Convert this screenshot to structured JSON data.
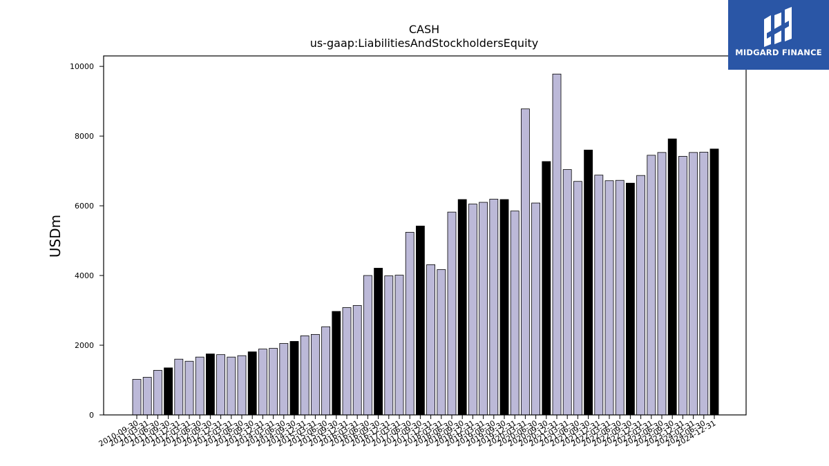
{
  "logo": {
    "text": "MIDGARD FINANCE",
    "background": "#2a56a6"
  },
  "chart_data": {
    "type": "bar",
    "title": "CASH",
    "subtitle": "us-gaap:LiabilitiesAndStockholdersEquity",
    "xlabel": "",
    "ylabel": "USDm",
    "ylim": [
      0,
      10300
    ],
    "yticks": [
      0,
      2000,
      4000,
      6000,
      8000,
      10000
    ],
    "grid": false,
    "colors": {
      "quarter": "#bcb9d8",
      "year_end": "#000000",
      "edge": "#000000"
    },
    "categories": [
      "2010-09-30",
      "2011-03-31",
      "2011-06-30",
      "2011-09-30",
      "2011-12-31",
      "2012-03-31",
      "2012-06-30",
      "2012-09-30",
      "2012-12-31",
      "2013-03-31",
      "2013-06-30",
      "2013-09-30",
      "2013-12-31",
      "2014-03-31",
      "2014-06-30",
      "2014-09-30",
      "2014-12-31",
      "2015-03-31",
      "2015-06-30",
      "2015-09-30",
      "2015-12-31",
      "2016-03-31",
      "2016-06-30",
      "2016-09-30",
      "2016-12-31",
      "2017-03-31",
      "2017-06-30",
      "2017-09-30",
      "2017-12-31",
      "2018-03-31",
      "2018-06-30",
      "2018-09-30",
      "2018-12-31",
      "2019-03-31",
      "2019-06-30",
      "2019-09-30",
      "2019-12-31",
      "2020-03-31",
      "2020-06-30",
      "2020-09-30",
      "2020-12-31",
      "2021-03-31",
      "2021-06-30",
      "2021-09-30",
      "2021-12-31",
      "2022-03-31",
      "2022-06-30",
      "2022-09-30",
      "2022-12-31",
      "2023-03-31",
      "2023-06-30",
      "2023-09-30",
      "2023-12-31",
      "2024-03-31",
      "2024-06-30",
      "2024-12-31"
    ],
    "values": [
      1020,
      1080,
      1280,
      1350,
      1600,
      1540,
      1660,
      1750,
      1730,
      1660,
      1700,
      1810,
      1890,
      1910,
      2050,
      2110,
      2270,
      2310,
      2530,
      2970,
      3080,
      3140,
      4000,
      4210,
      3990,
      4010,
      5240,
      5420,
      4310,
      4170,
      5820,
      6180,
      6050,
      6100,
      6190,
      6180,
      5850,
      8780,
      6080,
      7270,
      9780,
      7040,
      6700,
      7600,
      6880,
      6720,
      6730,
      6650,
      6870,
      7450,
      7530,
      7920,
      7420,
      7530,
      7540,
      7630
    ],
    "year_end": [
      false,
      false,
      false,
      true,
      false,
      false,
      false,
      true,
      false,
      false,
      false,
      true,
      false,
      false,
      false,
      true,
      false,
      false,
      false,
      true,
      false,
      false,
      false,
      true,
      false,
      false,
      false,
      true,
      false,
      false,
      false,
      true,
      false,
      false,
      false,
      true,
      false,
      false,
      false,
      true,
      false,
      false,
      false,
      true,
      false,
      false,
      false,
      true,
      false,
      false,
      false,
      true,
      false,
      false,
      false,
      true
    ]
  }
}
